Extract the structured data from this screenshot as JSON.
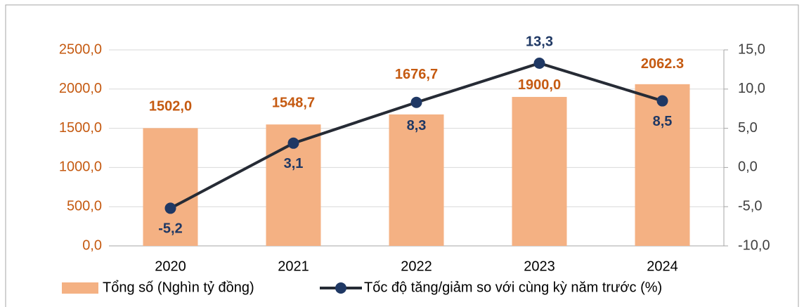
{
  "chart_data": {
    "type": "bar",
    "categories": [
      "2020",
      "2021",
      "2022",
      "2023",
      "2024"
    ],
    "series": [
      {
        "name": "Tổng số (Nghìn tỷ đồng)",
        "type": "bar",
        "color": "#f4b183",
        "label_color": "#c55a11",
        "values": [
          1502.0,
          1548.7,
          1676.7,
          1900.0,
          2062.3
        ],
        "value_labels": [
          "1502,0",
          "1548,7",
          "1676,7",
          "1900,0",
          "2062.3"
        ]
      },
      {
        "name": "Tốc độ tăng/giảm so với cùng kỳ năm trước (%)",
        "type": "line",
        "axis": "y2",
        "color": "#262b35",
        "marker_color": "#1f3864",
        "label_color": "#1f3864",
        "values": [
          -5.2,
          3.1,
          8.3,
          13.3,
          8.5
        ],
        "value_labels": [
          "-5,2",
          "3,1",
          "8,3",
          "13,3",
          "8,5"
        ]
      }
    ],
    "ylim": [
      0,
      2500
    ],
    "yticks": [
      {
        "value": 0,
        "label": "0,0"
      },
      {
        "value": 500,
        "label": "500,0"
      },
      {
        "value": 1000,
        "label": "1000,0"
      },
      {
        "value": 1500,
        "label": "1500,0"
      },
      {
        "value": 2000,
        "label": "2000,0"
      },
      {
        "value": 2500,
        "label": "2500,0"
      }
    ],
    "y2lim": [
      -10,
      15
    ],
    "y2ticks": [
      {
        "value": -10,
        "label": "-10,0"
      },
      {
        "value": -5,
        "label": "-5,0"
      },
      {
        "value": 0,
        "label": "0,0"
      },
      {
        "value": 5,
        "label": "5,0"
      },
      {
        "value": 10,
        "label": "10,0"
      },
      {
        "value": 15,
        "label": "15,0"
      }
    ],
    "grid": true,
    "legend": "bottom"
  }
}
